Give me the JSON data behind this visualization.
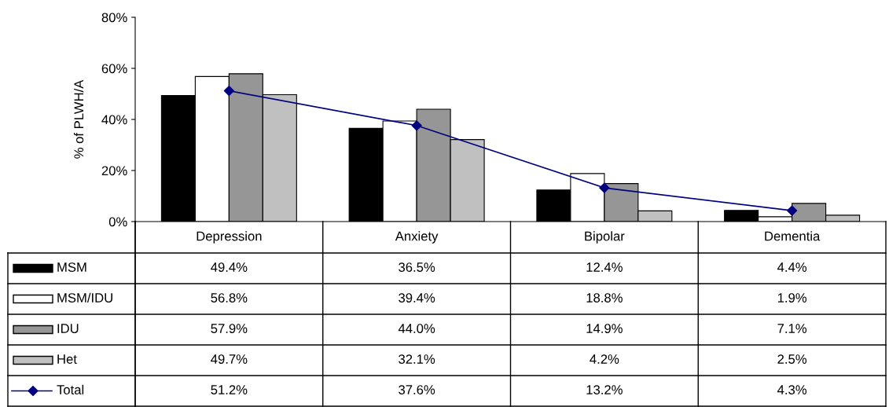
{
  "chart_data": {
    "type": "bar",
    "ylabel": "% of PLWH/A",
    "categories": [
      "Depression",
      "Anxiety",
      "Bipolar",
      "Dementia"
    ],
    "series": [
      {
        "name": "MSM",
        "color": "#000000",
        "values": [
          49.4,
          36.5,
          12.4,
          4.4
        ],
        "value_labels": [
          "49.4%",
          "36.5%",
          "12.4%",
          "4.4%"
        ]
      },
      {
        "name": "MSM/IDU",
        "color": "#ffffff",
        "values": [
          56.8,
          39.4,
          18.8,
          1.9
        ],
        "value_labels": [
          "56.8%",
          "39.4%",
          "18.8%",
          "1.9%"
        ]
      },
      {
        "name": "IDU",
        "color": "#969696",
        "values": [
          57.9,
          44.0,
          14.9,
          7.1
        ],
        "value_labels": [
          "57.9%",
          "44.0%",
          "14.9%",
          "7.1%"
        ]
      },
      {
        "name": "Het",
        "color": "#c0c0c0",
        "values": [
          49.7,
          32.1,
          4.2,
          2.5
        ],
        "value_labels": [
          "49.7%",
          "32.1%",
          "4.2%",
          "2.5%"
        ]
      },
      {
        "name": "Total",
        "type": "line",
        "color": "#000080",
        "marker": "diamond",
        "values": [
          51.2,
          37.6,
          13.2,
          4.3
        ],
        "value_labels": [
          "51.2%",
          "37.6%",
          "13.2%",
          "4.3%"
        ]
      }
    ],
    "ylim": [
      0,
      80
    ],
    "yticks": [
      {
        "value": 0,
        "label": "0%"
      },
      {
        "value": 20,
        "label": "20%"
      },
      {
        "value": 40,
        "label": "40%"
      },
      {
        "value": 60,
        "label": "60%"
      },
      {
        "value": 80,
        "label": "80%"
      }
    ],
    "grid": false,
    "legend": "bottom left"
  }
}
